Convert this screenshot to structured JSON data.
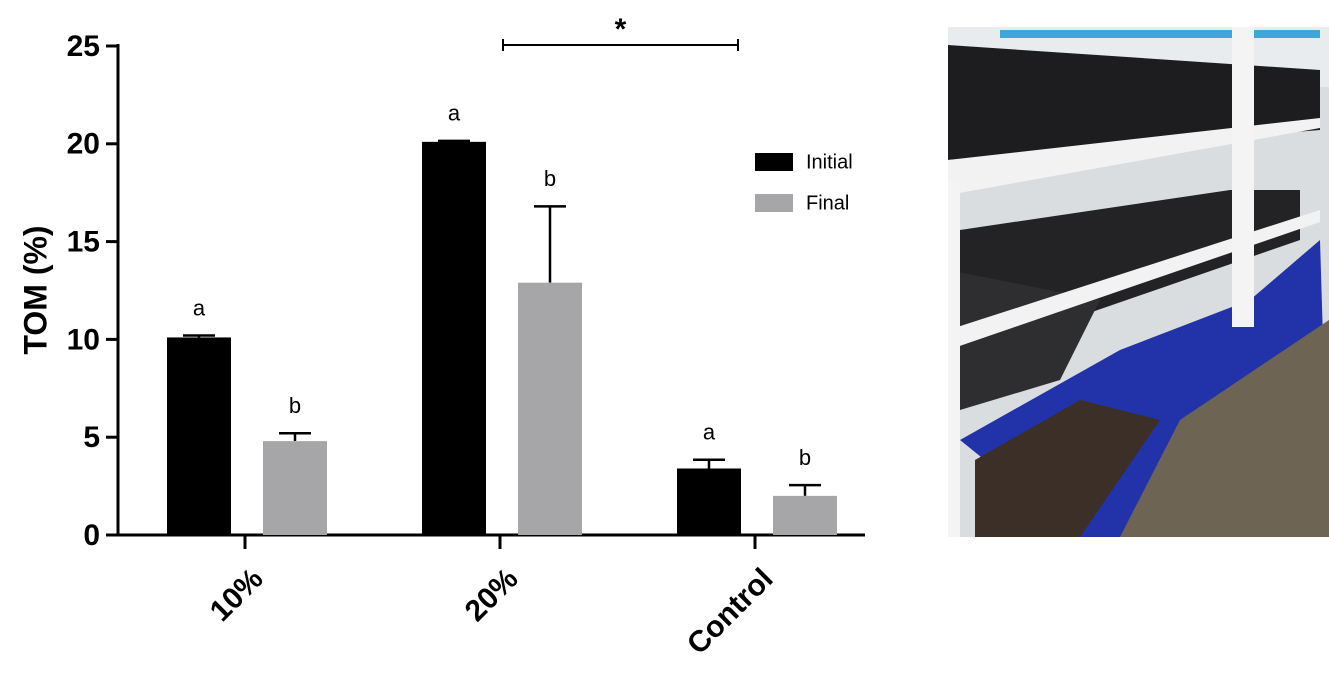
{
  "chart_data": {
    "type": "bar",
    "y_label": "TOM (%)",
    "categories": [
      "10%",
      "20%",
      "Control"
    ],
    "series": [
      {
        "name": "Initial",
        "color": "#000000",
        "values": [
          10.1,
          20.1,
          3.4
        ],
        "errors": [
          0.1,
          0.05,
          0.45
        ],
        "letters": [
          "a",
          "a",
          "a"
        ]
      },
      {
        "name": "Final",
        "color": "#a6a6a8",
        "values": [
          4.8,
          12.9,
          2.0
        ],
        "errors": [
          0.4,
          3.9,
          0.55
        ],
        "letters": [
          "b",
          "b",
          "b"
        ]
      }
    ],
    "annotation": "*",
    "ylim": [
      0,
      25
    ],
    "yticks": [
      0,
      5,
      10,
      15,
      20,
      25
    ],
    "legend": "upper-right"
  }
}
